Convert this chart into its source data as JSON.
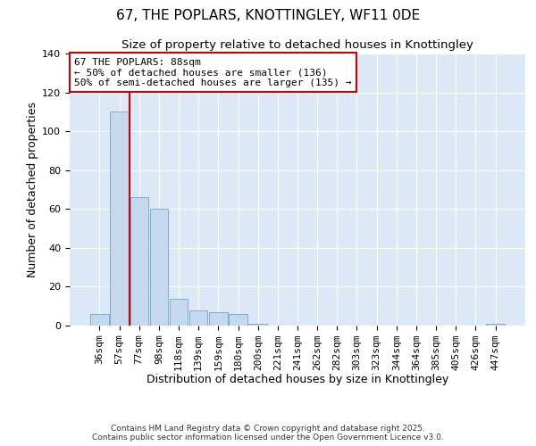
{
  "title": "67, THE POPLARS, KNOTTINGLEY, WF11 0DE",
  "subtitle": "Size of property relative to detached houses in Knottingley",
  "xlabel": "Distribution of detached houses by size in Knottingley",
  "ylabel": "Number of detached properties",
  "bar_labels": [
    "36sqm",
    "57sqm",
    "77sqm",
    "98sqm",
    "118sqm",
    "139sqm",
    "159sqm",
    "180sqm",
    "200sqm",
    "221sqm",
    "241sqm",
    "262sqm",
    "282sqm",
    "303sqm",
    "323sqm",
    "344sqm",
    "364sqm",
    "385sqm",
    "405sqm",
    "426sqm",
    "447sqm"
  ],
  "bar_values": [
    6,
    110,
    66,
    60,
    14,
    8,
    7,
    6,
    1,
    0,
    0,
    0,
    0,
    0,
    0,
    0,
    0,
    0,
    0,
    0,
    1
  ],
  "bar_color": "#c5d8ee",
  "bar_edge_color": "#7bafd4",
  "vline_x": 1.5,
  "vline_color": "#cc0000",
  "annotation_text": "67 THE POPLARS: 88sqm\n← 50% of detached houses are smaller (136)\n50% of semi-detached houses are larger (135) →",
  "annotation_box_color": "#ffffff",
  "annotation_box_edge_color": "#cc0000",
  "ylim": [
    0,
    140
  ],
  "yticks": [
    0,
    20,
    40,
    60,
    80,
    100,
    120,
    140
  ],
  "background_color": "#dce8f5",
  "footer_line1": "Contains HM Land Registry data © Crown copyright and database right 2025.",
  "footer_line2": "Contains public sector information licensed under the Open Government Licence v3.0.",
  "title_fontsize": 11,
  "subtitle_fontsize": 9.5,
  "xlabel_fontsize": 9,
  "ylabel_fontsize": 9,
  "annotation_fontsize": 8,
  "tick_fontsize": 8
}
